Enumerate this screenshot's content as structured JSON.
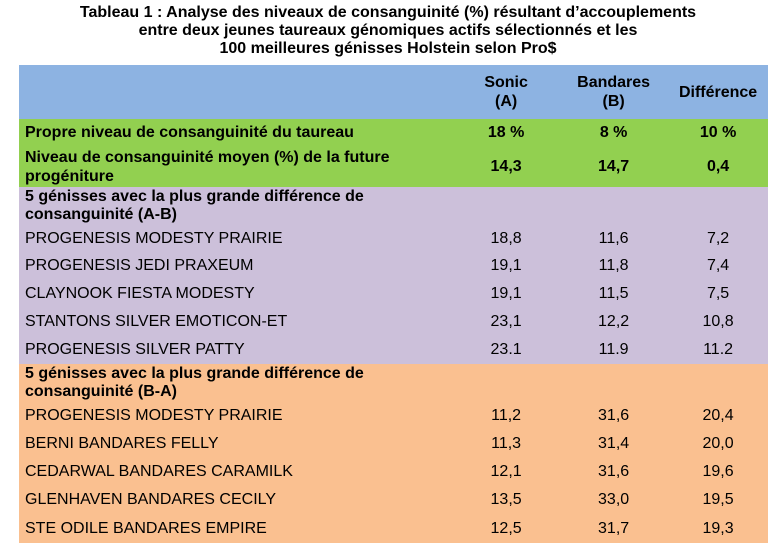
{
  "title": {
    "line1": "Tableau 1 : Analyse des niveaux de consanguinité (%) résultant d’accouplements",
    "line2": "entre deux jeunes taureaux génomiques actifs sélectionnés et les",
    "line3": "100 meilleures génisses Holstein selon Pro$"
  },
  "header": {
    "col1": "",
    "sonic_line1": "Sonic",
    "sonic_line2": "(A)",
    "bandares_line1": "Bandares",
    "bandares_line2": "(B)",
    "diff": "Différence"
  },
  "own_level": {
    "label": "Propre niveau de consanguinité du taureau",
    "a": "18 %",
    "b": "8 %",
    "diff": "10 %"
  },
  "avg_level": {
    "label_line1": "Niveau de consanguinité moyen (%) de la future",
    "label_line2": "progéniture",
    "a": "14,3",
    "b": "14,7",
    "diff": "0,4"
  },
  "section_ab": {
    "label_line1": "5 génisses avec la plus grande différence de",
    "label_line2": "consanguinité (A-B)",
    "rows": [
      {
        "name": "PROGENESIS MODESTY PRAIRIE",
        "a": "18,8",
        "b": "11,6",
        "diff": "7,2"
      },
      {
        "name": "PROGENESIS JEDI PRAXEUM",
        "a": "19,1",
        "b": "11,8",
        "diff": "7,4"
      },
      {
        "name": "CLAYNOOK FIESTA MODESTY",
        "a": "19,1",
        "b": "11,5",
        "diff": "7,5"
      },
      {
        "name": "STANTONS SILVER EMOTICON-ET",
        "a": "23,1",
        "b": "12,2",
        "diff": "10,8"
      },
      {
        "name": "PROGENESIS SILVER PATTY",
        "a": "23.1",
        "b": "11.9",
        "diff": "11.2"
      }
    ]
  },
  "section_ba": {
    "label_line1": "5 génisses avec la plus grande différence de",
    "label_line2": "consanguinité (B-A)",
    "rows": [
      {
        "name": "PROGENESIS MODESTY PRAIRIE",
        "a": "11,2",
        "b": "31,6",
        "diff": "20,4"
      },
      {
        "name": "BERNI BANDARES FELLY",
        "a": "11,3",
        "b": "31,4",
        "diff": "20,0"
      },
      {
        "name": "CEDARWAL BANDARES CARAMILK",
        "a": "12,1",
        "b": "31,6",
        "diff": "19,6"
      },
      {
        "name": "GLENHAVEN BANDARES CECILY",
        "a": "13,5",
        "b": "33,0",
        "diff": "19,5"
      },
      {
        "name": "STE ODILE BANDARES EMPIRE",
        "a": "12,5",
        "b": "31,7",
        "diff": "19,3"
      }
    ]
  },
  "colors": {
    "header": "#8db3e2",
    "green": "#92d050",
    "purple": "#ccc0da",
    "orange": "#fac090"
  }
}
